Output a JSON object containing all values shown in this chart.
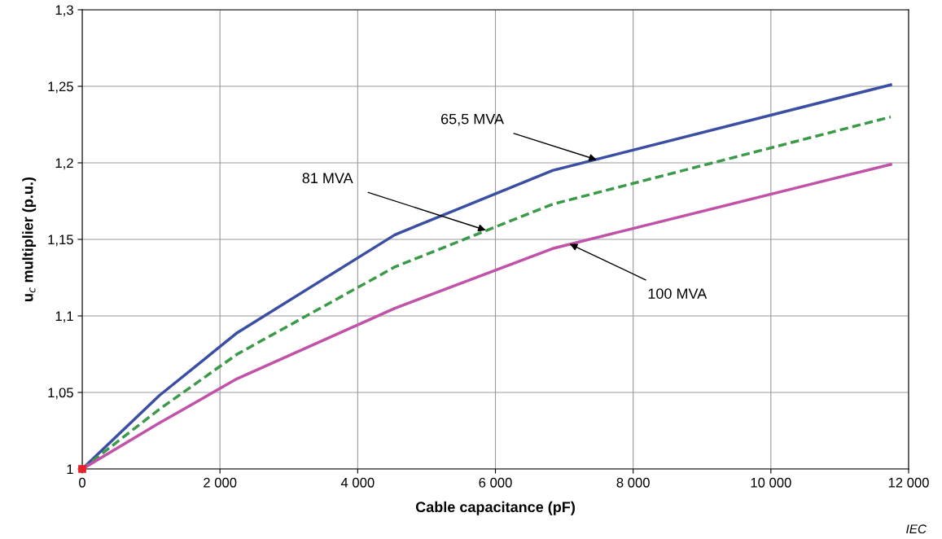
{
  "chart_data": {
    "type": "line",
    "xlabel": "Cable capacitance (pF)",
    "ylabel": "u$_{c}$ multiplier (p.u.)",
    "series": [
      {
        "x": [
          0,
          1120,
          2250,
          4540,
          6830,
          11740
        ],
        "values": [
          1.0,
          1.048,
          1.089,
          1.153,
          1.195,
          1.251
        ],
        "color": "#3a4fa3",
        "line_style": "solid",
        "marker": "none"
      },
      {
        "x": [
          0,
          1120,
          2250,
          4540,
          6830,
          11740
        ],
        "values": [
          1.0,
          1.039,
          1.075,
          1.132,
          1.173,
          1.23
        ],
        "color": "#3a9a48",
        "line_style": "dashed",
        "marker": "none"
      },
      {
        "x": [
          0,
          1120,
          2250,
          4540,
          6830,
          11740
        ],
        "values": [
          1.0,
          1.03,
          1.059,
          1.105,
          1.144,
          1.199
        ],
        "color": "#c052a8",
        "line_style": "solid",
        "marker": "none"
      },
      {
        "type": "scatter",
        "x": [
          0
        ],
        "values": [
          1.0
        ],
        "color": "#e8212a",
        "marker": "square"
      }
    ],
    "xlim": [
      0,
      12000
    ],
    "xticks": [
      0,
      {
        "value": 2000,
        "label": "2 000"
      },
      {
        "value": 4000,
        "label": "4 000"
      },
      {
        "value": 6000,
        "label": "6 000"
      },
      {
        "value": 8000,
        "label": "8 000"
      },
      {
        "value": 10000,
        "label": "10 000"
      },
      {
        "value": 12000,
        "label": "12 000"
      }
    ],
    "ylim": [
      1,
      1.3
    ],
    "yticks": [
      1,
      {
        "value": 1.05,
        "label": "1,05"
      },
      {
        "value": 1.1,
        "label": "1,1"
      },
      {
        "value": 1.15,
        "label": "1,15"
      },
      {
        "value": 1.2,
        "label": "1,2"
      },
      {
        "value": 1.25,
        "label": "1,25"
      },
      {
        "value": 1.3,
        "label": "1,3"
      }
    ],
    "grid": true,
    "legend": false,
    "annotations": [
      {
        "text": "65,5 MVA",
        "x": 7470,
        "y": 1.202
      },
      {
        "text": "81 MVA",
        "x": 5860,
        "y": 1.156
      },
      {
        "text": "100 MVA",
        "x": 7080,
        "y": 1.147
      },
      "IEC"
    ]
  }
}
